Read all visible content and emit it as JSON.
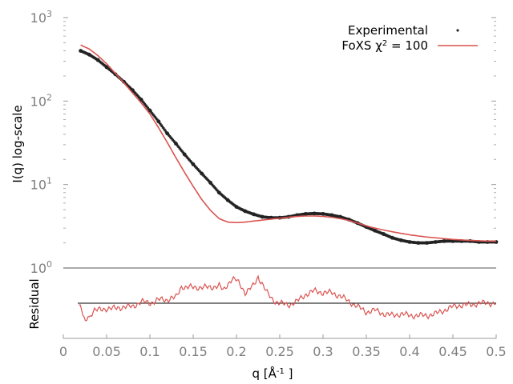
{
  "chart_data": {
    "type": "line",
    "top_panel": {
      "ylabel": "I(q) log-scale",
      "y_scale": "log",
      "ylim": [
        1,
        1000
      ],
      "y_ticks": [
        {
          "value": 1,
          "base": "10",
          "exp": "0"
        },
        {
          "value": 10,
          "base": "10",
          "exp": "1"
        },
        {
          "value": 100,
          "base": "10",
          "exp": "2"
        },
        {
          "value": 1000,
          "base": "10",
          "exp": "3"
        }
      ],
      "series": [
        {
          "name": "Experimental",
          "style": "points",
          "color": "#222222",
          "x": [
            0.02,
            0.03,
            0.04,
            0.05,
            0.06,
            0.07,
            0.08,
            0.09,
            0.1,
            0.11,
            0.12,
            0.13,
            0.14,
            0.15,
            0.16,
            0.17,
            0.18,
            0.19,
            0.2,
            0.21,
            0.22,
            0.23,
            0.24,
            0.25,
            0.26,
            0.27,
            0.28,
            0.29,
            0.3,
            0.31,
            0.32,
            0.33,
            0.34,
            0.35,
            0.36,
            0.37,
            0.38,
            0.39,
            0.4,
            0.41,
            0.42,
            0.43,
            0.44,
            0.45,
            0.46,
            0.47,
            0.48,
            0.49,
            0.5
          ],
          "y": [
            400,
            360,
            310,
            255,
            210,
            170,
            135,
            104,
            77,
            57,
            41,
            31,
            23,
            17.5,
            13.5,
            10.5,
            8.0,
            6.5,
            5.4,
            4.8,
            4.4,
            4.1,
            4.0,
            4.0,
            4.1,
            4.3,
            4.45,
            4.5,
            4.45,
            4.3,
            4.1,
            3.8,
            3.45,
            3.1,
            2.8,
            2.55,
            2.3,
            2.15,
            2.05,
            2.0,
            2.0,
            2.05,
            2.1,
            2.1,
            2.1,
            2.1,
            2.05,
            2.05,
            2.05
          ]
        },
        {
          "name": "FoXS χ² = 100",
          "legend_prefix": "FoXS χ",
          "legend_sup": "2",
          "legend_suffix": " = 100",
          "style": "line",
          "color": "#d9534f",
          "x": [
            0.02,
            0.03,
            0.04,
            0.05,
            0.06,
            0.07,
            0.08,
            0.09,
            0.1,
            0.11,
            0.12,
            0.13,
            0.14,
            0.15,
            0.16,
            0.17,
            0.18,
            0.19,
            0.2,
            0.21,
            0.22,
            0.23,
            0.24,
            0.25,
            0.26,
            0.27,
            0.28,
            0.29,
            0.3,
            0.31,
            0.32,
            0.33,
            0.34,
            0.35,
            0.36,
            0.37,
            0.38,
            0.39,
            0.4,
            0.41,
            0.42,
            0.43,
            0.44,
            0.45,
            0.46,
            0.47,
            0.48,
            0.49,
            0.5
          ],
          "y": [
            470,
            420,
            350,
            280,
            215,
            165,
            125,
            95,
            70,
            48,
            32,
            21,
            14,
            9.5,
            6.6,
            4.9,
            3.9,
            3.55,
            3.5,
            3.55,
            3.65,
            3.75,
            3.85,
            3.95,
            4.05,
            4.15,
            4.2,
            4.2,
            4.15,
            4.05,
            3.9,
            3.7,
            3.45,
            3.2,
            3.0,
            2.85,
            2.72,
            2.6,
            2.5,
            2.42,
            2.35,
            2.3,
            2.25,
            2.2,
            2.17,
            2.14,
            2.12,
            2.1,
            2.1
          ]
        }
      ]
    },
    "bottom_panel": {
      "ylabel": "Residual",
      "ylim": [
        -1,
        1
      ],
      "series": [
        {
          "name": "residual",
          "color": "#d9534f",
          "x": [
            0.018,
            0.021,
            0.024,
            0.026,
            0.028,
            0.03,
            0.035,
            0.04,
            0.05,
            0.06,
            0.07,
            0.08,
            0.09,
            0.1,
            0.105,
            0.11,
            0.12,
            0.125,
            0.13,
            0.133,
            0.137,
            0.14,
            0.15,
            0.16,
            0.17,
            0.18,
            0.185,
            0.19,
            0.195,
            0.2,
            0.205,
            0.21,
            0.215,
            0.22,
            0.225,
            0.23,
            0.235,
            0.24,
            0.245,
            0.25,
            0.26,
            0.27,
            0.28,
            0.29,
            0.3,
            0.31,
            0.32,
            0.33,
            0.34,
            0.35,
            0.36,
            0.37,
            0.38,
            0.39,
            0.4,
            0.41,
            0.42,
            0.43,
            0.44,
            0.45,
            0.46,
            0.47,
            0.48,
            0.49,
            0.5
          ],
          "y": [
            -0.05,
            -0.2,
            -0.45,
            -0.6,
            -0.3,
            -0.4,
            -0.2,
            -0.2,
            -0.15,
            -0.15,
            -0.1,
            -0.1,
            0.05,
            0.0,
            0.05,
            0.1,
            0.1,
            0.15,
            0.15,
            0.3,
            0.5,
            0.45,
            0.45,
            0.45,
            0.45,
            0.5,
            0.35,
            0.55,
            0.7,
            0.65,
            0.5,
            0.3,
            0.4,
            0.5,
            0.75,
            0.55,
            0.3,
            0.15,
            0.05,
            0.0,
            -0.05,
            0.05,
            0.25,
            0.35,
            0.3,
            0.3,
            0.2,
            0.05,
            -0.1,
            -0.25,
            -0.2,
            -0.3,
            -0.35,
            -0.3,
            -0.35,
            -0.35,
            -0.35,
            -0.3,
            -0.2,
            -0.1,
            -0.05,
            -0.05,
            0.0,
            0.0,
            0.0
          ]
        }
      ],
      "zero_line": 0
    },
    "xlabel_main": "q [Å",
    "xlabel_sup": "-1",
    "xlabel_end": "]",
    "xlim": [
      0,
      0.5
    ],
    "x_ticks": [
      0,
      0.05,
      0.1,
      0.15,
      0.2,
      0.25,
      0.3,
      0.35,
      0.4,
      0.45,
      0.5
    ],
    "x_tick_labels": [
      "0",
      "0.05",
      "0.1",
      "0.15",
      "0.2",
      "0.25",
      "0.3",
      "0.35",
      "0.4",
      "0.45",
      "0.5"
    ],
    "legend_placement": "top-right",
    "grid": false
  }
}
